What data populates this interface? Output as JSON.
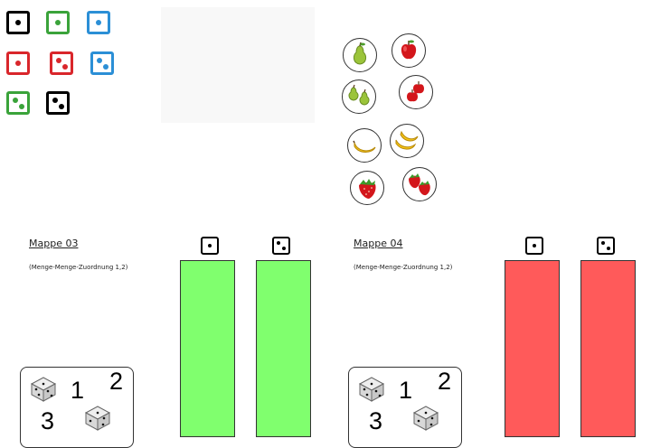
{
  "palette": {
    "black": "#000000",
    "green": "#3aa33a",
    "blue": "#2b8fd6",
    "red": "#d9262b",
    "column_green": "#80ff6e",
    "column_red": "#ff5a5a"
  },
  "dice_cards": [
    {
      "id": "black-1",
      "color": "black",
      "pips": 1
    },
    {
      "id": "green-1",
      "color": "green",
      "pips": 1
    },
    {
      "id": "blue-1",
      "color": "blue",
      "pips": 1
    },
    {
      "id": "red-1",
      "color": "red",
      "pips": 1
    },
    {
      "id": "red-2",
      "color": "red",
      "pips": 2
    },
    {
      "id": "blue-2",
      "color": "blue",
      "pips": 2
    },
    {
      "id": "green-2",
      "color": "green",
      "pips": 2
    },
    {
      "id": "black-2",
      "color": "black",
      "pips": 2
    }
  ],
  "fruits": [
    {
      "icon": "pear-icon",
      "count": 1
    },
    {
      "icon": "apple-icon",
      "count": 1
    },
    {
      "icon": "pear-icon",
      "count": 2
    },
    {
      "icon": "apple-icon",
      "count": 2
    },
    {
      "icon": "banana-icon",
      "count": 1
    },
    {
      "icon": "banana-icon",
      "count": 2
    },
    {
      "icon": "strawberry-icon",
      "count": 1
    },
    {
      "icon": "strawberry-icon",
      "count": 2
    }
  ],
  "folders": [
    {
      "title": "Mappe 03",
      "subtitle": "(Menge-Menge-Zuordnung 1,2)",
      "column_color": "green",
      "header_dice": [
        1,
        2
      ],
      "card_numbers": [
        "1",
        "2",
        "3"
      ]
    },
    {
      "title": "Mappe 04",
      "subtitle": "(Menge-Menge-Zuordnung 1,2)",
      "column_color": "red",
      "header_dice": [
        1,
        2
      ],
      "card_numbers": [
        "1",
        "2",
        "3"
      ]
    }
  ]
}
